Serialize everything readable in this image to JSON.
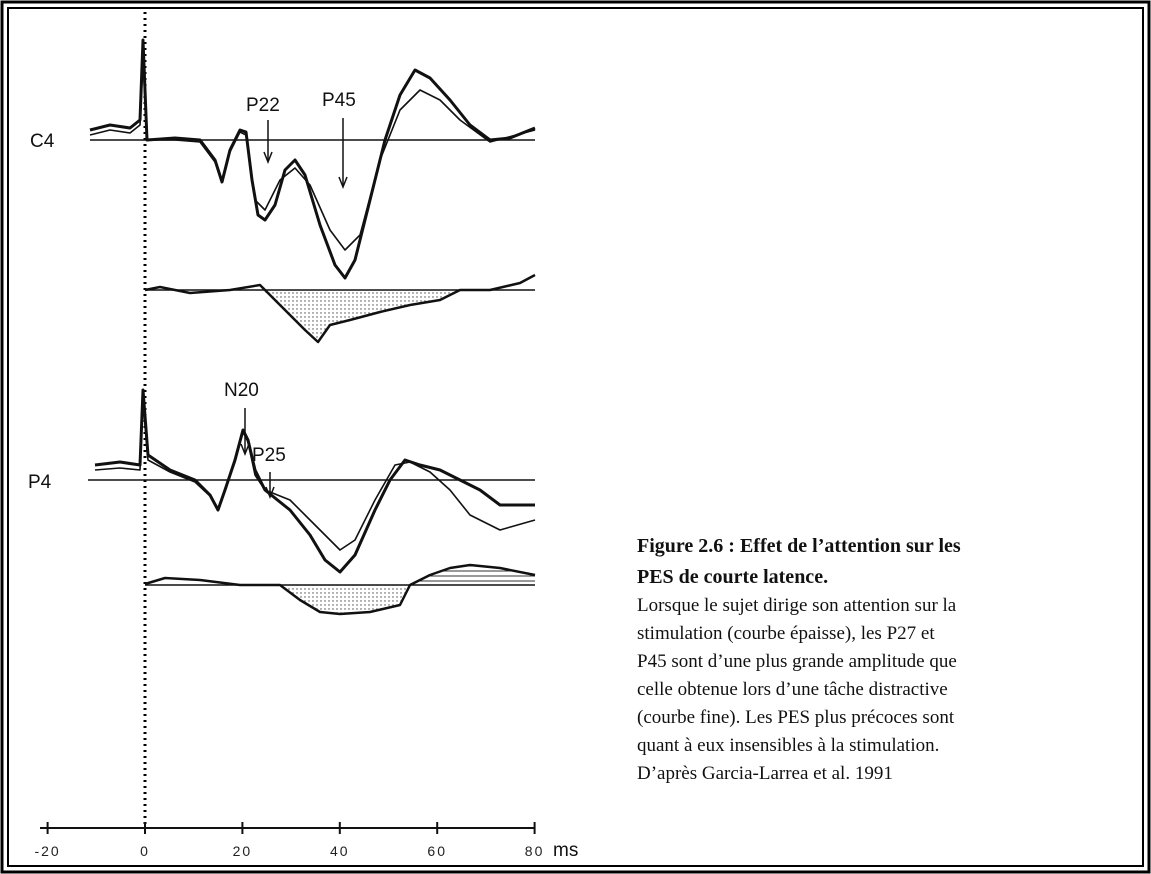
{
  "figure": {
    "labels": {
      "c4": "C4",
      "p4": "P4",
      "p22": "P22",
      "p45": "P45",
      "n20": "N20",
      "p25": "P25"
    },
    "axis": {
      "ticks": [
        {
          "value": -20,
          "label": "-20"
        },
        0,
        20,
        40,
        60,
        80
      ],
      "unit": "ms"
    },
    "caption": {
      "title": [
        "Figure 2.6 : Effet de l’attention sur les",
        "PES de courte latence."
      ],
      "lines": [
        "Lorsque le sujet dirige son attention  sur la",
        "stimulation (courbe épaisse), les P27 et",
        "P45 sont d’une plus grande amplitude que",
        "celle obtenue lors d’une tâche distractive",
        "(courbe fine). Les PES plus précoces sont",
        "quant à eux insensibles à la stimulation.",
        "D’après Garcia-Larrea et al. 1991"
      ]
    }
  }
}
